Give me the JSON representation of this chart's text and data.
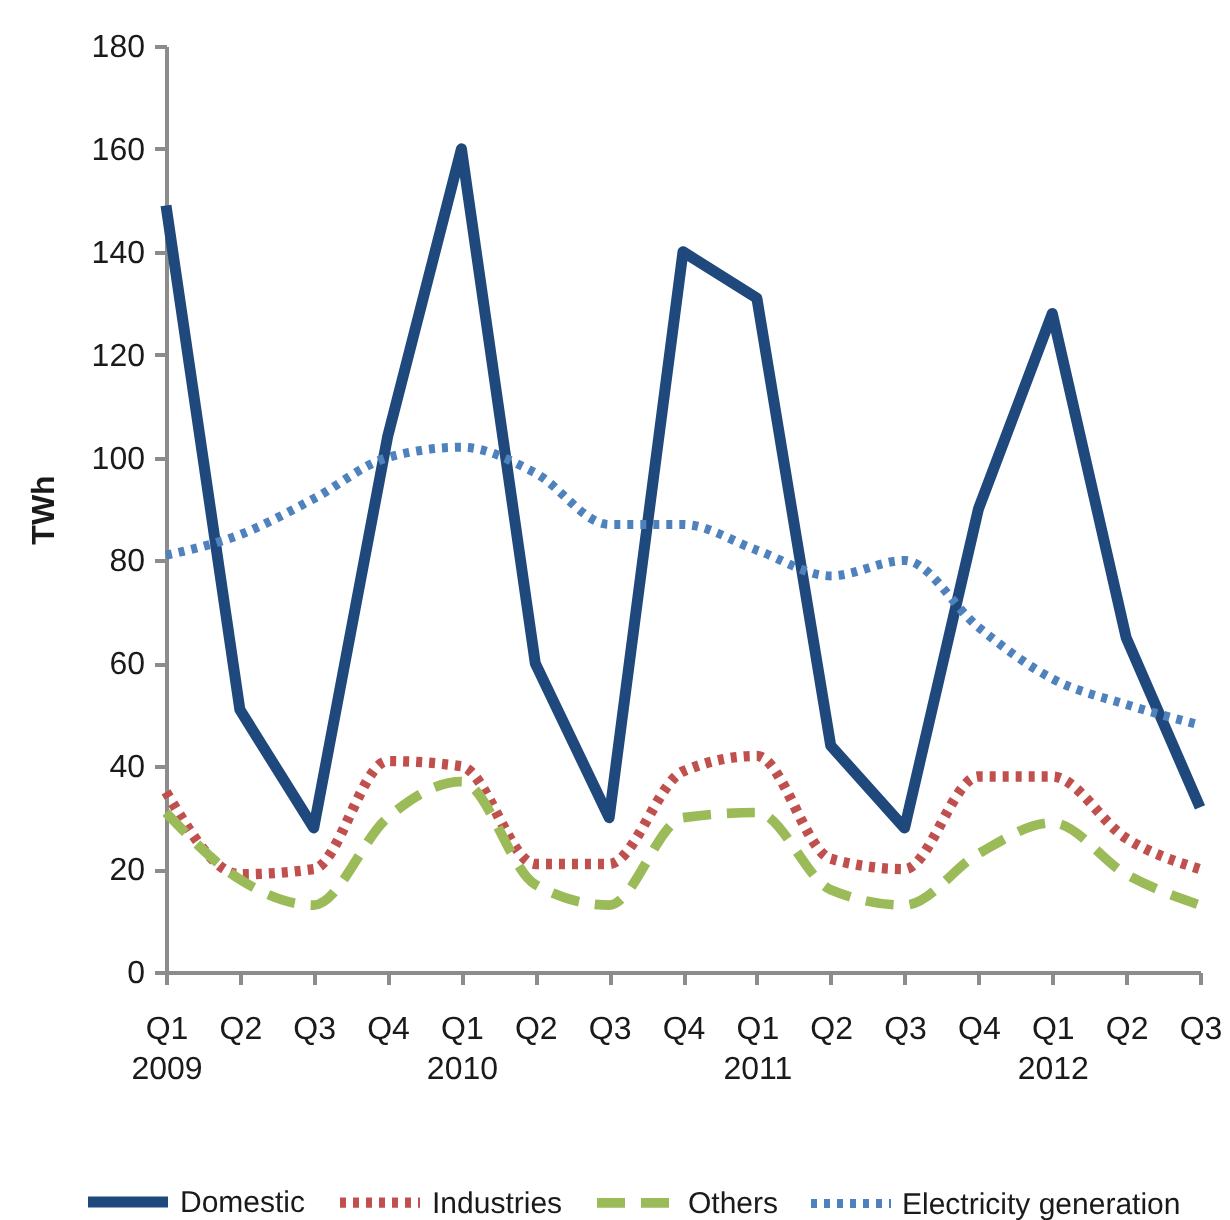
{
  "chart_data": {
    "type": "line",
    "ylabel": "TWh",
    "categories": [
      "Q1\n2009",
      "Q2",
      "Q3",
      "Q4",
      "Q1\n2010",
      "Q2",
      "Q3",
      "Q4",
      "Q1\n2011",
      "Q2",
      "Q3",
      "Q4",
      "Q1\n2012",
      "Q2",
      "Q3"
    ],
    "ylim": [
      0,
      180
    ],
    "yticks": [
      0,
      20,
      40,
      60,
      80,
      100,
      120,
      140,
      160,
      180
    ],
    "legend": "bottom",
    "series": [
      {
        "name": "Domestic",
        "color": "#1f497d",
        "line_style": "solid",
        "values": [
          149,
          51,
          28,
          104,
          160,
          60,
          30,
          140,
          131,
          44,
          28,
          90,
          128,
          65,
          32
        ]
      },
      {
        "name": "Industries",
        "color": "#c0504d",
        "line_style": "dotted",
        "values": [
          35,
          19,
          20,
          41,
          40,
          21,
          21,
          39,
          42,
          22,
          20,
          38,
          38,
          26,
          20
        ]
      },
      {
        "name": "Others",
        "color": "#9bbb59",
        "line_style": "dashed",
        "values": [
          31,
          18,
          13,
          30,
          37,
          17,
          13,
          30,
          31,
          16,
          13,
          23,
          29,
          19,
          13
        ]
      },
      {
        "name": "Electricity generation",
        "color": "#4f81bd",
        "line_style": "dotted",
        "values": [
          81,
          85,
          92,
          100,
          102,
          97,
          87,
          87,
          82,
          77,
          80,
          67,
          57,
          52,
          48
        ]
      }
    ]
  }
}
